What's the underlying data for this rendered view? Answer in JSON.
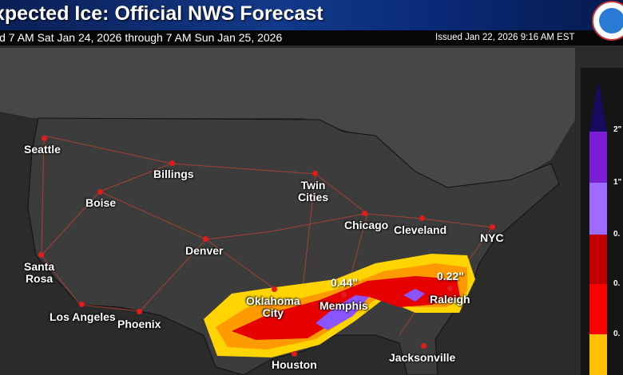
{
  "header": {
    "title": "xpected Ice: Official NWS Forecast",
    "valid": "id 7 AM Sat Jan 24, 2026 through 7 AM Sun Jan 25, 2026",
    "issued": "Issued Jan 22, 2026 9:16 AM EST",
    "logo": "nws-logo"
  },
  "cities": [
    {
      "name": "Seattle"
    },
    {
      "name": "Billings"
    },
    {
      "name": "Boise"
    },
    {
      "name": "Twin\nCities"
    },
    {
      "name": "Chicago"
    },
    {
      "name": "Cleveland"
    },
    {
      "name": "NYC"
    },
    {
      "name": "Denver"
    },
    {
      "name": "Santa\nRosa"
    },
    {
      "name": "Oklahoma\nCity"
    },
    {
      "name": "Memphis"
    },
    {
      "name": "Raleigh"
    },
    {
      "name": "Los Angeles"
    },
    {
      "name": "Phoenix"
    },
    {
      "name": "Houston"
    },
    {
      "name": "Jacksonville"
    }
  ],
  "annotations": [
    "0.44\"",
    "0.22\""
  ],
  "legend": {
    "labels": [
      "2\"",
      "1\"",
      "0.",
      "0.",
      "0."
    ],
    "colors": [
      "#1a0a5e",
      "#7a1fd6",
      "#9d6cff",
      "#c00000",
      "#ff0000",
      "#ffc000"
    ]
  },
  "colors": {
    "land": "#3c3c3d",
    "ocean": "#2b2b2c",
    "roads": "#c8452c",
    "ice_light": "#ffd400",
    "ice_orange": "#ff9a00",
    "ice_red": "#e60000",
    "ice_purple": "#8a55ff"
  }
}
